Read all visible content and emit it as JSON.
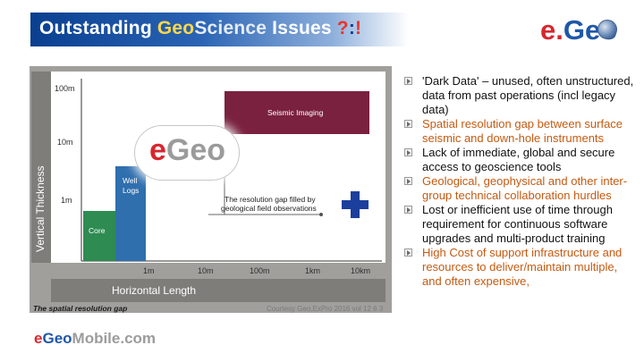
{
  "header": {
    "title_part1": "Outstanding ",
    "title_geo": "Geo",
    "title_science": "Science",
    "title_part2": " Issues ",
    "title_qmark": "?",
    "title_colon": ":",
    "title_excl": "!",
    "logo_e": "e.",
    "logo_geo": "Geo"
  },
  "chart": {
    "ylabel": "Vertical Thickness",
    "xlabel": "Horizontal Length",
    "yticks": [
      "100m",
      "10m",
      "1m"
    ],
    "xticks": [
      "1m",
      "10m",
      "100m",
      "1km",
      "10km"
    ],
    "boxes": {
      "seismic": "Seismic Imaging",
      "well_line1": "Well",
      "well_line2": "Logs",
      "core": "Core"
    },
    "annotation_line1": "The resolution gap filled by",
    "annotation_line2": "geological field observations",
    "badge_e": "e",
    "badge_geo": "Geo",
    "caption": "The spatial resolution gap",
    "courtesy": "Courtesy Geo.ExPro 2016 vol 12 6 3"
  },
  "footer_logo": {
    "e": "e",
    "geo": "Geo",
    "rest": "Mobile.com"
  },
  "bullets": [
    {
      "text": "'Dark Data' – unused, often unstructured, data from past operations (incl legacy data)",
      "color": "black"
    },
    {
      "text": "Spatial resolution gap between surface seismic and down-hole instruments",
      "color": "orange"
    },
    {
      "text": "Lack of immediate, global and secure access to geoscience tools",
      "color": "black"
    },
    {
      "text": "Geological, geophysical and other inter-group technical collaboration hurdles",
      "color": "orange"
    },
    {
      "text": "Lost or inefficient use of time through requirement for continuous software upgrades and multi-product training",
      "color": "black"
    },
    {
      "text": "High Cost of support infrastructure and resources to deliver/maintain multiple, and often expensive,",
      "color": "orange"
    }
  ],
  "colors": {
    "header_blue": "#0a3f90",
    "seismic_box": "#7a2140",
    "well_box": "#2f6fae",
    "core_box": "#2e8b52",
    "bullet_orange": "#c55a11",
    "logo_red": "#d8262e"
  }
}
